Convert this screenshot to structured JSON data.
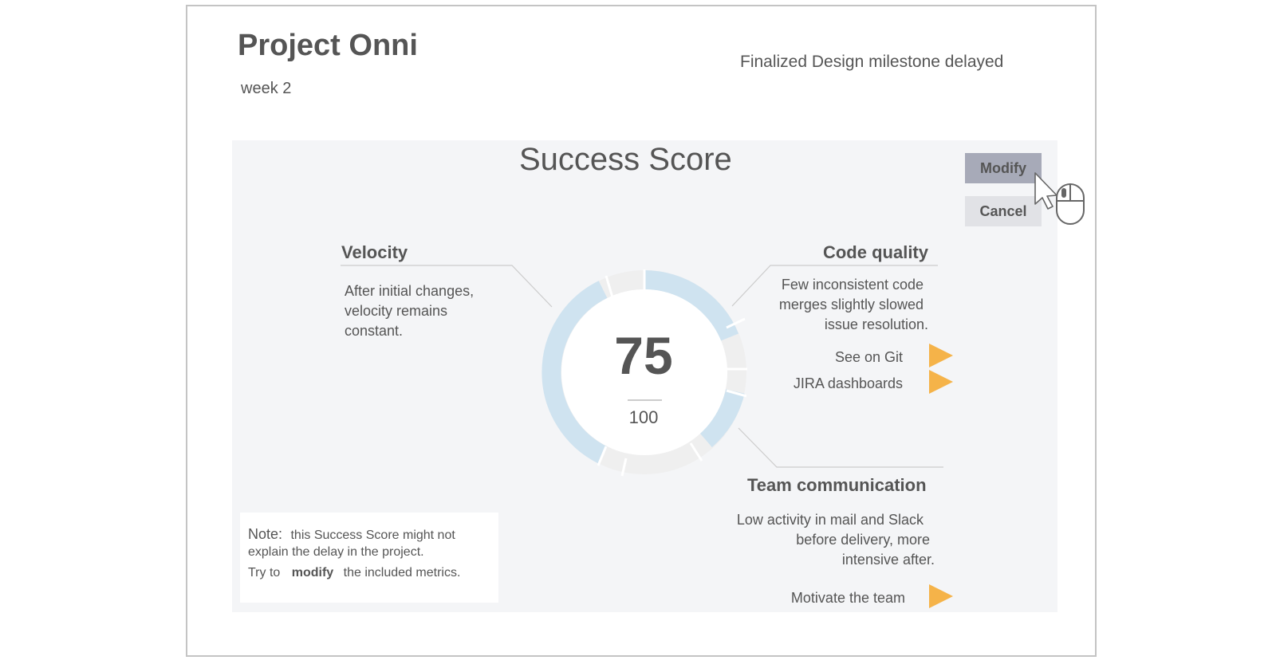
{
  "project": {
    "title": "Project Onni",
    "week": "week 2",
    "alert": "Finalized Design milestone delayed"
  },
  "success_score": {
    "title": "Success Score",
    "value": "75",
    "max": "100"
  },
  "actions": {
    "modify_label": "Modify",
    "cancel_label": "Cancel"
  },
  "metrics": {
    "velocity": {
      "title": "Velocity",
      "lines": [
        "After initial changes,",
        "velocity remains",
        "constant."
      ]
    },
    "code_quality": {
      "title": "Code quality",
      "lines": [
        "Few inconsistent code",
        "merges slightly slowed",
        "issue resolution."
      ],
      "links": [
        "See on Git",
        "JIRA dashboards"
      ]
    },
    "team_communication": {
      "title": "Team communication",
      "lines": [
        "Low activity in mail and Slack",
        "before delivery, more",
        "intensive after."
      ],
      "links": [
        "Motivate the team"
      ]
    }
  },
  "note": {
    "label": "Note:",
    "line1_rest": "this Success Score might not",
    "line2": "explain the delay in the project.",
    "line3_pre": "Try to",
    "line3_emph": "modify",
    "line3_post": "the included metrics."
  },
  "icons": {
    "cursor": "arrow-cursor-icon",
    "mouse": "mouse-click-icon",
    "link_arrow": "play-triangle-icon"
  },
  "colors": {
    "panel_bg": "#f4f5f7",
    "ring_blue": "#cfe3f0",
    "ring_gray": "#efefef",
    "arrow_orange": "#f5b349",
    "modify_bg": "#a7aab8",
    "cancel_bg": "#e1e2e6",
    "text": "#555555"
  }
}
